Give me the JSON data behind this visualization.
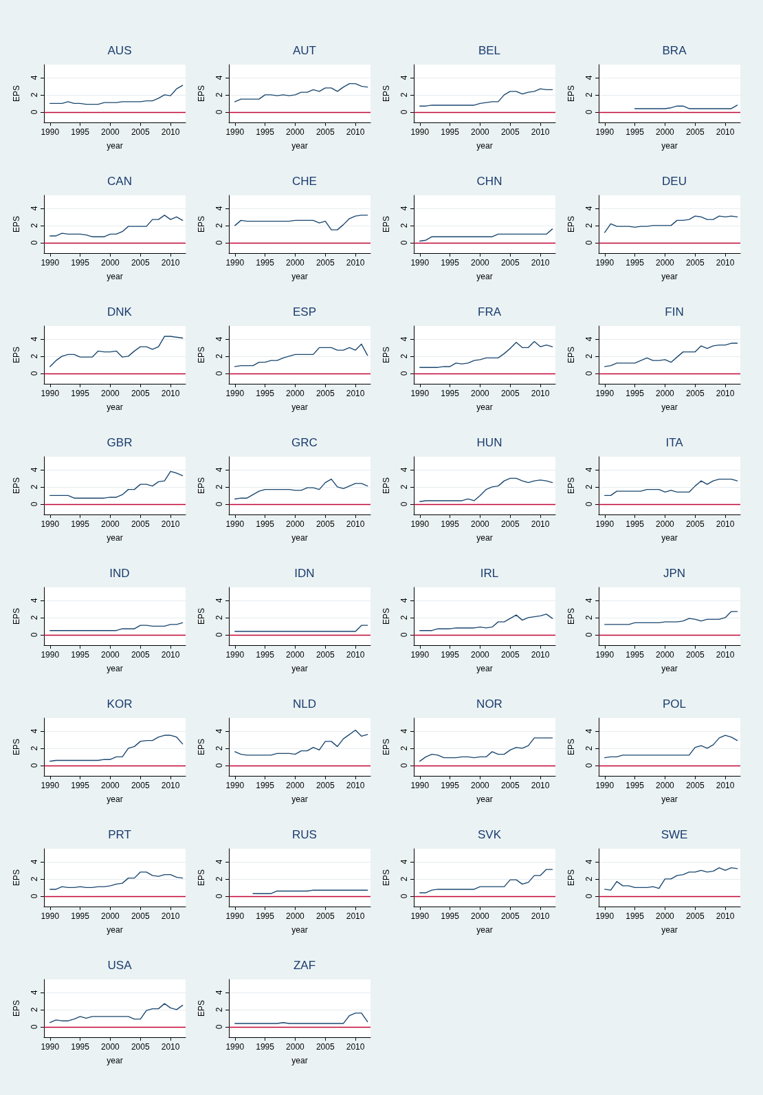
{
  "chart_data": [
    {
      "type": "line",
      "title": "AUS",
      "xlabel": "year",
      "ylabel": "EPS",
      "color": "#1a476f",
      "x": [
        1990,
        1991,
        1992,
        1993,
        1994,
        1995,
        1996,
        1997,
        1998,
        1999,
        2000,
        2001,
        2002,
        2003,
        2004,
        2005,
        2006,
        2007,
        2008,
        2009,
        2010,
        2011,
        2012
      ],
      "values": [
        1.0,
        1.0,
        1.0,
        1.2,
        1.0,
        1.0,
        0.9,
        0.9,
        0.9,
        1.1,
        1.1,
        1.1,
        1.2,
        1.2,
        1.2,
        1.2,
        1.3,
        1.3,
        1.6,
        2.0,
        1.9,
        2.7,
        3.1
      ],
      "xlim": [
        1989,
        2012.5
      ],
      "xticks": [
        1990,
        1995,
        2000,
        2005,
        2010
      ],
      "ylim": [
        -1.2,
        5.5
      ],
      "yticks": [
        0,
        2,
        4
      ],
      "grid": "y",
      "ref_lines": [
        {
          "axis": "y",
          "value": 0,
          "color": "#c10534"
        }
      ]
    },
    {
      "type": "line",
      "title": "AUT",
      "xlabel": "year",
      "ylabel": "EPS",
      "color": "#1a476f",
      "x": [
        1990,
        1991,
        1992,
        1993,
        1994,
        1995,
        1996,
        1997,
        1998,
        1999,
        2000,
        2001,
        2002,
        2003,
        2004,
        2005,
        2006,
        2007,
        2008,
        2009,
        2010,
        2011,
        2012
      ],
      "values": [
        1.2,
        1.5,
        1.5,
        1.5,
        1.5,
        2.0,
        2.0,
        1.9,
        2.0,
        1.9,
        2.0,
        2.3,
        2.3,
        2.6,
        2.4,
        2.8,
        2.8,
        2.4,
        2.9,
        3.3,
        3.3,
        3.0,
        2.9
      ],
      "xlim": [
        1989,
        2012.5
      ],
      "xticks": [
        1990,
        1995,
        2000,
        2005,
        2010
      ],
      "ylim": [
        -1.2,
        5.5
      ],
      "yticks": [
        0,
        2,
        4
      ],
      "grid": "y",
      "ref_lines": [
        {
          "axis": "y",
          "value": 0,
          "color": "#c10534"
        }
      ]
    },
    {
      "type": "line",
      "title": "BEL",
      "xlabel": "year",
      "ylabel": "EPS",
      "color": "#1a476f",
      "x": [
        1990,
        1991,
        1992,
        1993,
        1994,
        1995,
        1996,
        1997,
        1998,
        1999,
        2000,
        2001,
        2002,
        2003,
        2004,
        2005,
        2006,
        2007,
        2008,
        2009,
        2010,
        2011,
        2012
      ],
      "values": [
        0.7,
        0.7,
        0.8,
        0.8,
        0.8,
        0.8,
        0.8,
        0.8,
        0.8,
        0.8,
        1.0,
        1.1,
        1.2,
        1.2,
        2.0,
        2.4,
        2.4,
        2.1,
        2.3,
        2.4,
        2.7,
        2.6,
        2.6
      ],
      "xlim": [
        1989,
        2012.5
      ],
      "xticks": [
        1990,
        1995,
        2000,
        2005,
        2010
      ],
      "ylim": [
        -1.2,
        5.5
      ],
      "yticks": [
        0,
        2,
        4
      ],
      "grid": "y",
      "ref_lines": [
        {
          "axis": "y",
          "value": 0,
          "color": "#c10534"
        }
      ]
    },
    {
      "type": "line",
      "title": "BRA",
      "xlabel": "year",
      "ylabel": "EPS",
      "color": "#1a476f",
      "x": [
        1995,
        1996,
        1997,
        1998,
        1999,
        2000,
        2001,
        2002,
        2003,
        2004,
        2005,
        2006,
        2007,
        2008,
        2009,
        2010,
        2011,
        2012
      ],
      "values": [
        0.4,
        0.4,
        0.4,
        0.4,
        0.4,
        0.4,
        0.5,
        0.7,
        0.7,
        0.4,
        0.4,
        0.4,
        0.4,
        0.4,
        0.4,
        0.4,
        0.4,
        0.8
      ],
      "xlim": [
        1989,
        2012.5
      ],
      "xticks": [
        1990,
        1995,
        2000,
        2005,
        2010
      ],
      "ylim": [
        -1.2,
        5.5
      ],
      "yticks": [
        0,
        2,
        4
      ],
      "grid": "y",
      "ref_lines": [
        {
          "axis": "y",
          "value": 0,
          "color": "#c10534"
        }
      ]
    },
    {
      "type": "line",
      "title": "CAN",
      "xlabel": "year",
      "ylabel": "EPS",
      "color": "#1a476f",
      "x": [
        1990,
        1991,
        1992,
        1993,
        1994,
        1995,
        1996,
        1997,
        1998,
        1999,
        2000,
        2001,
        2002,
        2003,
        2004,
        2005,
        2006,
        2007,
        2008,
        2009,
        2010,
        2011,
        2012
      ],
      "values": [
        0.8,
        0.8,
        1.1,
        1.0,
        1.0,
        1.0,
        0.9,
        0.7,
        0.7,
        0.7,
        1.0,
        1.0,
        1.3,
        1.9,
        1.9,
        1.9,
        1.9,
        2.7,
        2.7,
        3.2,
        2.7,
        3.0,
        2.6
      ],
      "xlim": [
        1989,
        2012.5
      ],
      "xticks": [
        1990,
        1995,
        2000,
        2005,
        2010
      ],
      "ylim": [
        -1.2,
        5.5
      ],
      "yticks": [
        0,
        2,
        4
      ],
      "grid": "y",
      "ref_lines": [
        {
          "axis": "y",
          "value": 0,
          "color": "#c10534"
        }
      ]
    },
    {
      "type": "line",
      "title": "CHE",
      "xlabel": "year",
      "ylabel": "EPS",
      "color": "#1a476f",
      "x": [
        1990,
        1991,
        1992,
        1993,
        1994,
        1995,
        1996,
        1997,
        1998,
        1999,
        2000,
        2001,
        2002,
        2003,
        2004,
        2005,
        2006,
        2007,
        2008,
        2009,
        2010,
        2011,
        2012
      ],
      "values": [
        2.0,
        2.6,
        2.5,
        2.5,
        2.5,
        2.5,
        2.5,
        2.5,
        2.5,
        2.5,
        2.6,
        2.6,
        2.6,
        2.6,
        2.3,
        2.5,
        1.5,
        1.5,
        2.1,
        2.8,
        3.1,
        3.2,
        3.2
      ],
      "xlim": [
        1989,
        2012.5
      ],
      "xticks": [
        1990,
        1995,
        2000,
        2005,
        2010
      ],
      "ylim": [
        -1.2,
        5.5
      ],
      "yticks": [
        0,
        2,
        4
      ],
      "grid": "y",
      "ref_lines": [
        {
          "axis": "y",
          "value": 0,
          "color": "#c10534"
        }
      ]
    },
    {
      "type": "line",
      "title": "CHN",
      "xlabel": "year",
      "ylabel": "EPS",
      "color": "#1a476f",
      "x": [
        1990,
        1991,
        1992,
        1993,
        1994,
        1995,
        1996,
        1997,
        1998,
        1999,
        2000,
        2001,
        2002,
        2003,
        2004,
        2005,
        2006,
        2007,
        2008,
        2009,
        2010,
        2011,
        2012
      ],
      "values": [
        0.2,
        0.3,
        0.7,
        0.7,
        0.7,
        0.7,
        0.7,
        0.7,
        0.7,
        0.7,
        0.7,
        0.7,
        0.7,
        1.0,
        1.0,
        1.0,
        1.0,
        1.0,
        1.0,
        1.0,
        1.0,
        1.0,
        1.6
      ],
      "xlim": [
        1989,
        2012.5
      ],
      "xticks": [
        1990,
        1995,
        2000,
        2005,
        2010
      ],
      "ylim": [
        -1.2,
        5.5
      ],
      "yticks": [
        0,
        2,
        4
      ],
      "grid": "y",
      "ref_lines": [
        {
          "axis": "y",
          "value": 0,
          "color": "#c10534"
        }
      ]
    },
    {
      "type": "line",
      "title": "DEU",
      "xlabel": "year",
      "ylabel": "EPS",
      "color": "#1a476f",
      "x": [
        1990,
        1991,
        1992,
        1993,
        1994,
        1995,
        1996,
        1997,
        1998,
        1999,
        2000,
        2001,
        2002,
        2003,
        2004,
        2005,
        2006,
        2007,
        2008,
        2009,
        2010,
        2011,
        2012
      ],
      "values": [
        1.2,
        2.2,
        1.9,
        1.9,
        1.9,
        1.8,
        1.9,
        1.9,
        2.0,
        2.0,
        2.0,
        2.0,
        2.6,
        2.6,
        2.7,
        3.1,
        3.0,
        2.7,
        2.7,
        3.1,
        3.0,
        3.1,
        3.0
      ],
      "xlim": [
        1989,
        2012.5
      ],
      "xticks": [
        1990,
        1995,
        2000,
        2005,
        2010
      ],
      "ylim": [
        -1.2,
        5.5
      ],
      "yticks": [
        0,
        2,
        4
      ],
      "grid": "y",
      "ref_lines": [
        {
          "axis": "y",
          "value": 0,
          "color": "#c10534"
        }
      ]
    },
    {
      "type": "line",
      "title": "DNK",
      "xlabel": "year",
      "ylabel": "EPS",
      "color": "#1a476f",
      "x": [
        1990,
        1991,
        1992,
        1993,
        1994,
        1995,
        1996,
        1997,
        1998,
        1999,
        2000,
        2001,
        2002,
        2003,
        2004,
        2005,
        2006,
        2007,
        2008,
        2009,
        2010,
        2011,
        2012
      ],
      "values": [
        0.8,
        1.5,
        2.0,
        2.2,
        2.2,
        1.9,
        1.9,
        1.9,
        2.6,
        2.5,
        2.5,
        2.6,
        1.9,
        2.0,
        2.6,
        3.1,
        3.1,
        2.8,
        3.1,
        4.3,
        4.3,
        4.2,
        4.1
      ],
      "xlim": [
        1989,
        2012.5
      ],
      "xticks": [
        1990,
        1995,
        2000,
        2005,
        2010
      ],
      "ylim": [
        -1.2,
        5.5
      ],
      "yticks": [
        0,
        2,
        4
      ],
      "grid": "y",
      "ref_lines": [
        {
          "axis": "y",
          "value": 0,
          "color": "#c10534"
        }
      ]
    },
    {
      "type": "line",
      "title": "ESP",
      "xlabel": "year",
      "ylabel": "EPS",
      "color": "#1a476f",
      "x": [
        1990,
        1991,
        1992,
        1993,
        1994,
        1995,
        1996,
        1997,
        1998,
        1999,
        2000,
        2001,
        2002,
        2003,
        2004,
        2005,
        2006,
        2007,
        2008,
        2009,
        2010,
        2011,
        2012
      ],
      "values": [
        0.8,
        0.9,
        0.9,
        0.9,
        1.3,
        1.3,
        1.5,
        1.5,
        1.8,
        2.0,
        2.2,
        2.2,
        2.2,
        2.2,
        3.0,
        3.0,
        3.0,
        2.7,
        2.7,
        3.0,
        2.7,
        3.4,
        2.1
      ],
      "xlim": [
        1989,
        2012.5
      ],
      "xticks": [
        1990,
        1995,
        2000,
        2005,
        2010
      ],
      "ylim": [
        -1.2,
        5.5
      ],
      "yticks": [
        0,
        2,
        4
      ],
      "grid": "y",
      "ref_lines": [
        {
          "axis": "y",
          "value": 0,
          "color": "#c10534"
        }
      ]
    },
    {
      "type": "line",
      "title": "FRA",
      "xlabel": "year",
      "ylabel": "EPS",
      "color": "#1a476f",
      "x": [
        1990,
        1991,
        1992,
        1993,
        1994,
        1995,
        1996,
        1997,
        1998,
        1999,
        2000,
        2001,
        2002,
        2003,
        2004,
        2005,
        2006,
        2007,
        2008,
        2009,
        2010,
        2011,
        2012
      ],
      "values": [
        0.7,
        0.7,
        0.7,
        0.7,
        0.8,
        0.8,
        1.2,
        1.1,
        1.2,
        1.5,
        1.6,
        1.8,
        1.8,
        1.8,
        2.3,
        2.9,
        3.6,
        3.0,
        3.0,
        3.7,
        3.1,
        3.3,
        3.1
      ],
      "xlim": [
        1989,
        2012.5
      ],
      "xticks": [
        1990,
        1995,
        2000,
        2005,
        2010
      ],
      "ylim": [
        -1.2,
        5.5
      ],
      "yticks": [
        0,
        2,
        4
      ],
      "grid": "y",
      "ref_lines": [
        {
          "axis": "y",
          "value": 0,
          "color": "#c10534"
        }
      ]
    },
    {
      "type": "line",
      "title": "FIN",
      "xlabel": "year",
      "ylabel": "EPS",
      "color": "#1a476f",
      "x": [
        1990,
        1991,
        1992,
        1993,
        1994,
        1995,
        1996,
        1997,
        1998,
        1999,
        2000,
        2001,
        2002,
        2003,
        2004,
        2005,
        2006,
        2007,
        2008,
        2009,
        2010,
        2011,
        2012
      ],
      "values": [
        0.8,
        0.9,
        1.2,
        1.2,
        1.2,
        1.2,
        1.5,
        1.8,
        1.5,
        1.5,
        1.6,
        1.3,
        1.9,
        2.5,
        2.5,
        2.5,
        3.2,
        2.9,
        3.2,
        3.3,
        3.3,
        3.5,
        3.5
      ],
      "xlim": [
        1989,
        2012.5
      ],
      "xticks": [
        1990,
        1995,
        2000,
        2005,
        2010
      ],
      "ylim": [
        -1.2,
        5.5
      ],
      "yticks": [
        0,
        2,
        4
      ],
      "grid": "y",
      "ref_lines": [
        {
          "axis": "y",
          "value": 0,
          "color": "#c10534"
        }
      ]
    },
    {
      "type": "line",
      "title": "GBR",
      "xlabel": "year",
      "ylabel": "EPS",
      "color": "#1a476f",
      "x": [
        1990,
        1991,
        1992,
        1993,
        1994,
        1995,
        1996,
        1997,
        1998,
        1999,
        2000,
        2001,
        2002,
        2003,
        2004,
        2005,
        2006,
        2007,
        2008,
        2009,
        2010,
        2011,
        2012
      ],
      "values": [
        1.0,
        1.0,
        1.0,
        1.0,
        0.7,
        0.7,
        0.7,
        0.7,
        0.7,
        0.7,
        0.8,
        0.8,
        1.1,
        1.7,
        1.7,
        2.3,
        2.3,
        2.1,
        2.6,
        2.7,
        3.8,
        3.6,
        3.3
      ],
      "xlim": [
        1989,
        2012.5
      ],
      "xticks": [
        1990,
        1995,
        2000,
        2005,
        2010
      ],
      "ylim": [
        -1.2,
        5.5
      ],
      "yticks": [
        0,
        2,
        4
      ],
      "grid": "y",
      "ref_lines": [
        {
          "axis": "y",
          "value": 0,
          "color": "#c10534"
        }
      ]
    },
    {
      "type": "line",
      "title": "GRC",
      "xlabel": "year",
      "ylabel": "EPS",
      "color": "#1a476f",
      "x": [
        1990,
        1991,
        1992,
        1993,
        1994,
        1995,
        1996,
        1997,
        1998,
        1999,
        2000,
        2001,
        2002,
        2003,
        2004,
        2005,
        2006,
        2007,
        2008,
        2009,
        2010,
        2011,
        2012
      ],
      "values": [
        0.6,
        0.7,
        0.7,
        1.1,
        1.5,
        1.7,
        1.7,
        1.7,
        1.7,
        1.7,
        1.6,
        1.6,
        1.9,
        1.9,
        1.7,
        2.5,
        2.9,
        2.0,
        1.8,
        2.1,
        2.4,
        2.4,
        2.1
      ],
      "xlim": [
        1989,
        2012.5
      ],
      "xticks": [
        1990,
        1995,
        2000,
        2005,
        2010
      ],
      "ylim": [
        -1.2,
        5.5
      ],
      "yticks": [
        0,
        2,
        4
      ],
      "grid": "y",
      "ref_lines": [
        {
          "axis": "y",
          "value": 0,
          "color": "#c10534"
        }
      ]
    },
    {
      "type": "line",
      "title": "HUN",
      "xlabel": "year",
      "ylabel": "EPS",
      "color": "#1a476f",
      "x": [
        1990,
        1991,
        1992,
        1993,
        1994,
        1995,
        1996,
        1997,
        1998,
        1999,
        2000,
        2001,
        2002,
        2003,
        2004,
        2005,
        2006,
        2007,
        2008,
        2009,
        2010,
        2011,
        2012
      ],
      "values": [
        0.3,
        0.4,
        0.4,
        0.4,
        0.4,
        0.4,
        0.4,
        0.4,
        0.6,
        0.4,
        1.0,
        1.7,
        2.0,
        2.1,
        2.7,
        3.0,
        3.0,
        2.7,
        2.5,
        2.7,
        2.8,
        2.7,
        2.5
      ],
      "xlim": [
        1989,
        2012.5
      ],
      "xticks": [
        1990,
        1995,
        2000,
        2005,
        2010
      ],
      "ylim": [
        -1.2,
        5.5
      ],
      "yticks": [
        0,
        2,
        4
      ],
      "grid": "y",
      "ref_lines": [
        {
          "axis": "y",
          "value": 0,
          "color": "#c10534"
        }
      ]
    },
    {
      "type": "line",
      "title": "ITA",
      "xlabel": "year",
      "ylabel": "EPS",
      "color": "#1a476f",
      "x": [
        1990,
        1991,
        1992,
        1993,
        1994,
        1995,
        1996,
        1997,
        1998,
        1999,
        2000,
        2001,
        2002,
        2003,
        2004,
        2005,
        2006,
        2007,
        2008,
        2009,
        2010,
        2011,
        2012
      ],
      "values": [
        1.0,
        1.0,
        1.5,
        1.5,
        1.5,
        1.5,
        1.5,
        1.7,
        1.7,
        1.7,
        1.4,
        1.6,
        1.4,
        1.4,
        1.4,
        2.1,
        2.7,
        2.3,
        2.7,
        2.9,
        2.9,
        2.9,
        2.7
      ],
      "xlim": [
        1989,
        2012.5
      ],
      "xticks": [
        1990,
        1995,
        2000,
        2005,
        2010
      ],
      "ylim": [
        -1.2,
        5.5
      ],
      "yticks": [
        0,
        2,
        4
      ],
      "grid": "y",
      "ref_lines": [
        {
          "axis": "y",
          "value": 0,
          "color": "#c10534"
        }
      ]
    },
    {
      "type": "line",
      "title": "IND",
      "xlabel": "year",
      "ylabel": "EPS",
      "color": "#1a476f",
      "x": [
        1990,
        1991,
        1992,
        1993,
        1994,
        1995,
        1996,
        1997,
        1998,
        1999,
        2000,
        2001,
        2002,
        2003,
        2004,
        2005,
        2006,
        2007,
        2008,
        2009,
        2010,
        2011,
        2012
      ],
      "values": [
        0.5,
        0.5,
        0.5,
        0.5,
        0.5,
        0.5,
        0.5,
        0.5,
        0.5,
        0.5,
        0.5,
        0.5,
        0.7,
        0.7,
        0.7,
        1.1,
        1.1,
        1.0,
        1.0,
        1.0,
        1.2,
        1.2,
        1.4
      ],
      "xlim": [
        1989,
        2012.5
      ],
      "xticks": [
        1990,
        1995,
        2000,
        2005,
        2010
      ],
      "ylim": [
        -1.2,
        5.5
      ],
      "yticks": [
        0,
        2,
        4
      ],
      "grid": "y",
      "ref_lines": [
        {
          "axis": "y",
          "value": 0,
          "color": "#c10534"
        }
      ]
    },
    {
      "type": "line",
      "title": "IDN",
      "xlabel": "year",
      "ylabel": "EPS",
      "color": "#1a476f",
      "x": [
        1990,
        1991,
        1992,
        1993,
        1994,
        1995,
        1996,
        1997,
        1998,
        1999,
        2000,
        2001,
        2002,
        2003,
        2004,
        2005,
        2006,
        2007,
        2008,
        2009,
        2010,
        2011,
        2012
      ],
      "values": [
        0.4,
        0.4,
        0.4,
        0.4,
        0.4,
        0.4,
        0.4,
        0.4,
        0.4,
        0.4,
        0.4,
        0.4,
        0.4,
        0.4,
        0.4,
        0.4,
        0.4,
        0.4,
        0.4,
        0.4,
        0.4,
        1.1,
        1.1
      ],
      "xlim": [
        1989,
        2012.5
      ],
      "xticks": [
        1990,
        1995,
        2000,
        2005,
        2010
      ],
      "ylim": [
        -1.2,
        5.5
      ],
      "yticks": [
        0,
        2,
        4
      ],
      "grid": "y",
      "ref_lines": [
        {
          "axis": "y",
          "value": 0,
          "color": "#c10534"
        }
      ]
    },
    {
      "type": "line",
      "title": "IRL",
      "xlabel": "year",
      "ylabel": "EPS",
      "color": "#1a476f",
      "x": [
        1990,
        1991,
        1992,
        1993,
        1994,
        1995,
        1996,
        1997,
        1998,
        1999,
        2000,
        2001,
        2002,
        2003,
        2004,
        2005,
        2006,
        2007,
        2008,
        2009,
        2010,
        2011,
        2012
      ],
      "values": [
        0.5,
        0.5,
        0.5,
        0.7,
        0.7,
        0.7,
        0.8,
        0.8,
        0.8,
        0.8,
        0.9,
        0.8,
        0.9,
        1.5,
        1.5,
        1.9,
        2.3,
        1.7,
        2.0,
        2.1,
        2.2,
        2.4,
        1.9
      ],
      "xlim": [
        1989,
        2012.5
      ],
      "xticks": [
        1990,
        1995,
        2000,
        2005,
        2010
      ],
      "ylim": [
        -1.2,
        5.5
      ],
      "yticks": [
        0,
        2,
        4
      ],
      "grid": "y",
      "ref_lines": [
        {
          "axis": "y",
          "value": 0,
          "color": "#c10534"
        }
      ]
    },
    {
      "type": "line",
      "title": "JPN",
      "xlabel": "year",
      "ylabel": "EPS",
      "color": "#1a476f",
      "x": [
        1990,
        1991,
        1992,
        1993,
        1994,
        1995,
        1996,
        1997,
        1998,
        1999,
        2000,
        2001,
        2002,
        2003,
        2004,
        2005,
        2006,
        2007,
        2008,
        2009,
        2010,
        2011,
        2012
      ],
      "values": [
        1.2,
        1.2,
        1.2,
        1.2,
        1.2,
        1.4,
        1.4,
        1.4,
        1.4,
        1.4,
        1.5,
        1.5,
        1.5,
        1.6,
        1.9,
        1.8,
        1.6,
        1.8,
        1.8,
        1.8,
        2.0,
        2.7,
        2.7
      ],
      "xlim": [
        1989,
        2012.5
      ],
      "xticks": [
        1990,
        1995,
        2000,
        2005,
        2010
      ],
      "ylim": [
        -1.2,
        5.5
      ],
      "yticks": [
        0,
        2,
        4
      ],
      "grid": "y",
      "ref_lines": [
        {
          "axis": "y",
          "value": 0,
          "color": "#c10534"
        }
      ]
    },
    {
      "type": "line",
      "title": "KOR",
      "xlabel": "year",
      "ylabel": "EPS",
      "color": "#1a476f",
      "x": [
        1990,
        1991,
        1992,
        1993,
        1994,
        1995,
        1996,
        1997,
        1998,
        1999,
        2000,
        2001,
        2002,
        2003,
        2004,
        2005,
        2006,
        2007,
        2008,
        2009,
        2010,
        2011,
        2012
      ],
      "values": [
        0.5,
        0.6,
        0.6,
        0.6,
        0.6,
        0.6,
        0.6,
        0.6,
        0.6,
        0.7,
        0.7,
        1.0,
        1.0,
        2.0,
        2.2,
        2.8,
        2.9,
        2.9,
        3.3,
        3.5,
        3.5,
        3.3,
        2.5
      ],
      "xlim": [
        1989,
        2012.5
      ],
      "xticks": [
        1990,
        1995,
        2000,
        2005,
        2010
      ],
      "ylim": [
        -1.2,
        5.5
      ],
      "yticks": [
        0,
        2,
        4
      ],
      "grid": "y",
      "ref_lines": [
        {
          "axis": "y",
          "value": 0,
          "color": "#c10534"
        }
      ]
    },
    {
      "type": "line",
      "title": "NLD",
      "xlabel": "year",
      "ylabel": "EPS",
      "color": "#1a476f",
      "x": [
        1990,
        1991,
        1992,
        1993,
        1994,
        1995,
        1996,
        1997,
        1998,
        1999,
        2000,
        2001,
        2002,
        2003,
        2004,
        2005,
        2006,
        2007,
        2008,
        2009,
        2010,
        2011,
        2012
      ],
      "values": [
        1.6,
        1.3,
        1.2,
        1.2,
        1.2,
        1.2,
        1.2,
        1.4,
        1.4,
        1.4,
        1.3,
        1.7,
        1.7,
        2.1,
        1.8,
        2.8,
        2.8,
        2.2,
        3.1,
        3.6,
        4.1,
        3.4,
        3.6
      ],
      "xlim": [
        1989,
        2012.5
      ],
      "xticks": [
        1990,
        1995,
        2000,
        2005,
        2010
      ],
      "ylim": [
        -1.2,
        5.5
      ],
      "yticks": [
        0,
        2,
        4
      ],
      "grid": "y",
      "ref_lines": [
        {
          "axis": "y",
          "value": 0,
          "color": "#c10534"
        }
      ]
    },
    {
      "type": "line",
      "title": "NOR",
      "xlabel": "year",
      "ylabel": "EPS",
      "color": "#1a476f",
      "x": [
        1990,
        1991,
        1992,
        1993,
        1994,
        1995,
        1996,
        1997,
        1998,
        1999,
        2000,
        2001,
        2002,
        2003,
        2004,
        2005,
        2006,
        2007,
        2008,
        2009,
        2010,
        2011,
        2012
      ],
      "values": [
        0.5,
        1.0,
        1.3,
        1.2,
        0.9,
        0.9,
        0.9,
        1.0,
        1.0,
        0.9,
        1.0,
        1.0,
        1.6,
        1.3,
        1.3,
        1.8,
        2.1,
        2.0,
        2.3,
        3.2,
        3.2,
        3.2,
        3.2
      ],
      "xlim": [
        1989,
        2012.5
      ],
      "xticks": [
        1990,
        1995,
        2000,
        2005,
        2010
      ],
      "ylim": [
        -1.2,
        5.5
      ],
      "yticks": [
        0,
        2,
        4
      ],
      "grid": "y",
      "ref_lines": [
        {
          "axis": "y",
          "value": 0,
          "color": "#c10534"
        }
      ]
    },
    {
      "type": "line",
      "title": "POL",
      "xlabel": "year",
      "ylabel": "EPS",
      "color": "#1a476f",
      "x": [
        1990,
        1991,
        1992,
        1993,
        1994,
        1995,
        1996,
        1997,
        1998,
        1999,
        2000,
        2001,
        2002,
        2003,
        2004,
        2005,
        2006,
        2007,
        2008,
        2009,
        2010,
        2011,
        2012
      ],
      "values": [
        0.9,
        1.0,
        1.0,
        1.2,
        1.2,
        1.2,
        1.2,
        1.2,
        1.2,
        1.2,
        1.2,
        1.2,
        1.2,
        1.2,
        1.2,
        2.1,
        2.3,
        2.0,
        2.4,
        3.2,
        3.5,
        3.3,
        2.9
      ],
      "xlim": [
        1989,
        2012.5
      ],
      "xticks": [
        1990,
        1995,
        2000,
        2005,
        2010
      ],
      "ylim": [
        -1.2,
        5.5
      ],
      "yticks": [
        0,
        2,
        4
      ],
      "grid": "y",
      "ref_lines": [
        {
          "axis": "y",
          "value": 0,
          "color": "#c10534"
        }
      ]
    },
    {
      "type": "line",
      "title": "PRT",
      "xlabel": "year",
      "ylabel": "EPS",
      "color": "#1a476f",
      "x": [
        1990,
        1991,
        1992,
        1993,
        1994,
        1995,
        1996,
        1997,
        1998,
        1999,
        2000,
        2001,
        2002,
        2003,
        2004,
        2005,
        2006,
        2007,
        2008,
        2009,
        2010,
        2011,
        2012
      ],
      "values": [
        0.8,
        0.8,
        1.1,
        1.0,
        1.0,
        1.1,
        1.0,
        1.0,
        1.1,
        1.1,
        1.2,
        1.4,
        1.5,
        2.1,
        2.1,
        2.8,
        2.8,
        2.4,
        2.3,
        2.5,
        2.5,
        2.2,
        2.1
      ],
      "xlim": [
        1989,
        2012.5
      ],
      "xticks": [
        1990,
        1995,
        2000,
        2005,
        2010
      ],
      "ylim": [
        -1.2,
        5.5
      ],
      "yticks": [
        0,
        2,
        4
      ],
      "grid": "y",
      "ref_lines": [
        {
          "axis": "y",
          "value": 0,
          "color": "#c10534"
        }
      ]
    },
    {
      "type": "line",
      "title": "RUS",
      "xlabel": "year",
      "ylabel": "EPS",
      "color": "#1a476f",
      "x": [
        1993,
        1994,
        1995,
        1996,
        1997,
        1998,
        1999,
        2000,
        2001,
        2002,
        2003,
        2004,
        2005,
        2006,
        2007,
        2008,
        2009,
        2010,
        2011,
        2012
      ],
      "values": [
        0.3,
        0.3,
        0.3,
        0.3,
        0.6,
        0.6,
        0.6,
        0.6,
        0.6,
        0.6,
        0.7,
        0.7,
        0.7,
        0.7,
        0.7,
        0.7,
        0.7,
        0.7,
        0.7,
        0.7
      ],
      "xlim": [
        1989,
        2012.5
      ],
      "xticks": [
        1990,
        1995,
        2000,
        2005,
        2010
      ],
      "ylim": [
        -1.2,
        5.5
      ],
      "yticks": [
        0,
        2,
        4
      ],
      "grid": "y",
      "ref_lines": [
        {
          "axis": "y",
          "value": 0,
          "color": "#c10534"
        }
      ]
    },
    {
      "type": "line",
      "title": "SVK",
      "xlabel": "year",
      "ylabel": "EPS",
      "color": "#1a476f",
      "x": [
        1990,
        1991,
        1992,
        1993,
        1994,
        1995,
        1996,
        1997,
        1998,
        1999,
        2000,
        2001,
        2002,
        2003,
        2004,
        2005,
        2006,
        2007,
        2008,
        2009,
        2010,
        2011,
        2012
      ],
      "values": [
        0.4,
        0.4,
        0.7,
        0.8,
        0.8,
        0.8,
        0.8,
        0.8,
        0.8,
        0.8,
        1.1,
        1.1,
        1.1,
        1.1,
        1.1,
        1.9,
        1.9,
        1.4,
        1.6,
        2.4,
        2.4,
        3.1,
        3.1
      ],
      "xlim": [
        1989,
        2012.5
      ],
      "xticks": [
        1990,
        1995,
        2000,
        2005,
        2010
      ],
      "ylim": [
        -1.2,
        5.5
      ],
      "yticks": [
        0,
        2,
        4
      ],
      "grid": "y",
      "ref_lines": [
        {
          "axis": "y",
          "value": 0,
          "color": "#c10534"
        }
      ]
    },
    {
      "type": "line",
      "title": "SWE",
      "xlabel": "year",
      "ylabel": "EPS",
      "color": "#1a476f",
      "x": [
        1990,
        1991,
        1992,
        1993,
        1994,
        1995,
        1996,
        1997,
        1998,
        1999,
        2000,
        2001,
        2002,
        2003,
        2004,
        2005,
        2006,
        2007,
        2008,
        2009,
        2010,
        2011,
        2012
      ],
      "values": [
        0.8,
        0.7,
        1.7,
        1.2,
        1.2,
        1.0,
        1.0,
        1.0,
        1.1,
        0.9,
        2.0,
        2.0,
        2.4,
        2.5,
        2.8,
        2.8,
        3.0,
        2.8,
        2.9,
        3.3,
        3.0,
        3.3,
        3.2
      ],
      "xlim": [
        1989,
        2012.5
      ],
      "xticks": [
        1990,
        1995,
        2000,
        2005,
        2010
      ],
      "ylim": [
        -1.2,
        5.5
      ],
      "yticks": [
        0,
        2,
        4
      ],
      "grid": "y",
      "ref_lines": [
        {
          "axis": "y",
          "value": 0,
          "color": "#c10534"
        }
      ]
    },
    {
      "type": "line",
      "title": "USA",
      "xlabel": "year",
      "ylabel": "EPS",
      "color": "#1a476f",
      "x": [
        1990,
        1991,
        1992,
        1993,
        1994,
        1995,
        1996,
        1997,
        1998,
        1999,
        2000,
        2001,
        2002,
        2003,
        2004,
        2005,
        2006,
        2007,
        2008,
        2009,
        2010,
        2011,
        2012
      ],
      "values": [
        0.5,
        0.8,
        0.7,
        0.7,
        0.9,
        1.2,
        1.0,
        1.2,
        1.2,
        1.2,
        1.2,
        1.2,
        1.2,
        1.2,
        0.9,
        0.9,
        1.9,
        2.1,
        2.1,
        2.7,
        2.2,
        2.0,
        2.5
      ],
      "xlim": [
        1989,
        2012.5
      ],
      "xticks": [
        1990,
        1995,
        2000,
        2005,
        2010
      ],
      "ylim": [
        -1.2,
        5.5
      ],
      "yticks": [
        0,
        2,
        4
      ],
      "grid": "y",
      "ref_lines": [
        {
          "axis": "y",
          "value": 0,
          "color": "#c10534"
        }
      ]
    },
    {
      "type": "line",
      "title": "ZAF",
      "xlabel": "year",
      "ylabel": "EPS",
      "color": "#1a476f",
      "x": [
        1990,
        1991,
        1992,
        1993,
        1994,
        1995,
        1996,
        1997,
        1998,
        1999,
        2000,
        2001,
        2002,
        2003,
        2004,
        2005,
        2006,
        2007,
        2008,
        2009,
        2010,
        2011,
        2012
      ],
      "values": [
        0.4,
        0.4,
        0.4,
        0.4,
        0.4,
        0.4,
        0.4,
        0.4,
        0.5,
        0.4,
        0.4,
        0.4,
        0.4,
        0.4,
        0.4,
        0.4,
        0.4,
        0.4,
        0.4,
        1.3,
        1.6,
        1.6,
        0.6
      ],
      "xlim": [
        1989,
        2012.5
      ],
      "xticks": [
        1990,
        1995,
        2000,
        2005,
        2010
      ],
      "ylim": [
        -1.2,
        5.5
      ],
      "yticks": [
        0,
        2,
        4
      ],
      "grid": "y",
      "ref_lines": [
        {
          "axis": "y",
          "value": 0,
          "color": "#c10534"
        }
      ]
    }
  ]
}
